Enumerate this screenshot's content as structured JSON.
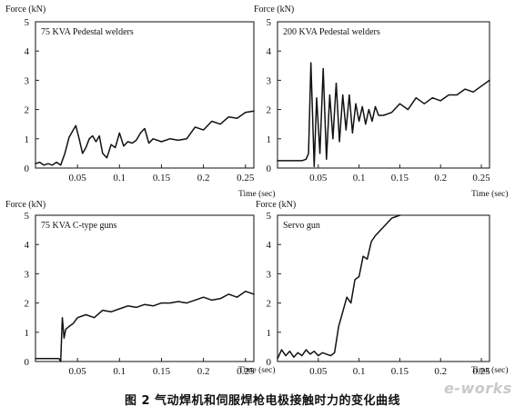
{
  "caption": "图 2   气动焊机和伺服焊枪电极接触时力的变化曲线",
  "watermark": "e-works",
  "colors": {
    "line": "#111111",
    "frame": "#222222",
    "background": "#ffffff"
  },
  "chart_data": [
    {
      "type": "line",
      "title": "75 KVA Pedestal welders",
      "ylabel": "Force (kN)",
      "xlabel": "Time (sec)",
      "xlim": [
        0,
        0.26
      ],
      "ylim": [
        0,
        5
      ],
      "xticks": [
        "0.05",
        "0.1",
        "0.15",
        "0.2",
        "0.25"
      ],
      "yticks": [
        "0",
        "1",
        "2",
        "3",
        "4",
        "5"
      ],
      "series": [
        {
          "x": [
            0,
            0.005,
            0.01,
            0.015,
            0.02,
            0.025,
            0.03,
            0.035,
            0.04,
            0.045,
            0.048,
            0.052,
            0.056,
            0.06,
            0.064,
            0.068,
            0.072,
            0.076,
            0.08,
            0.085,
            0.09,
            0.095,
            0.1,
            0.105,
            0.11,
            0.115,
            0.12,
            0.125,
            0.13,
            0.135,
            0.14,
            0.15,
            0.16,
            0.17,
            0.18,
            0.19,
            0.2,
            0.21,
            0.22,
            0.23,
            0.24,
            0.25,
            0.26
          ],
          "y": [
            0.15,
            0.2,
            0.1,
            0.15,
            0.1,
            0.2,
            0.1,
            0.5,
            1.05,
            1.3,
            1.45,
            1.0,
            0.5,
            0.7,
            1.0,
            1.1,
            0.9,
            1.1,
            0.5,
            0.35,
            0.8,
            0.7,
            1.2,
            0.75,
            0.9,
            0.85,
            0.95,
            1.2,
            1.35,
            0.85,
            1.0,
            0.9,
            1.0,
            0.95,
            1.0,
            1.4,
            1.3,
            1.6,
            1.5,
            1.75,
            1.7,
            1.9,
            1.95
          ]
        }
      ]
    },
    {
      "type": "line",
      "title": "200 KVA Pedestal welders",
      "ylabel": "Force (kN)",
      "xlabel": "Time (sec)",
      "xlim": [
        0,
        0.26
      ],
      "ylim": [
        0,
        5
      ],
      "xticks": [
        "0.05",
        "0.1",
        "0.15",
        "0.2",
        "0.25"
      ],
      "yticks": [
        "0",
        "1",
        "2",
        "3",
        "4",
        "5"
      ],
      "series": [
        {
          "x": [
            0,
            0.01,
            0.02,
            0.03,
            0.035,
            0.038,
            0.041,
            0.045,
            0.048,
            0.052,
            0.056,
            0.06,
            0.064,
            0.068,
            0.072,
            0.076,
            0.08,
            0.084,
            0.088,
            0.092,
            0.096,
            0.1,
            0.104,
            0.108,
            0.112,
            0.116,
            0.12,
            0.124,
            0.13,
            0.14,
            0.15,
            0.16,
            0.17,
            0.18,
            0.19,
            0.2,
            0.21,
            0.22,
            0.23,
            0.24,
            0.25,
            0.26
          ],
          "y": [
            0.25,
            0.25,
            0.25,
            0.25,
            0.3,
            0.5,
            3.6,
            0.05,
            2.4,
            0.5,
            3.4,
            0.3,
            2.5,
            1.0,
            2.9,
            0.9,
            2.5,
            1.3,
            2.5,
            1.2,
            2.2,
            1.6,
            2.1,
            1.5,
            2.0,
            1.6,
            2.1,
            1.8,
            1.8,
            1.9,
            2.2,
            2.0,
            2.4,
            2.2,
            2.4,
            2.3,
            2.5,
            2.5,
            2.7,
            2.6,
            2.8,
            3.0
          ]
        }
      ]
    },
    {
      "type": "line",
      "title": "75 KVA C-type guns",
      "ylabel": "Force (kN)",
      "xlabel": "Time (sec)",
      "xlim": [
        0,
        0.26
      ],
      "ylim": [
        0,
        5
      ],
      "xticks": [
        "0.05",
        "0.1",
        "0.15",
        "0.2",
        "0.25"
      ],
      "yticks": [
        "0",
        "1",
        "2",
        "3",
        "4",
        "5"
      ],
      "series": [
        {
          "x": [
            0,
            0.01,
            0.02,
            0.025,
            0.028,
            0.03,
            0.032,
            0.034,
            0.036,
            0.04,
            0.045,
            0.05,
            0.06,
            0.07,
            0.08,
            0.09,
            0.1,
            0.11,
            0.12,
            0.13,
            0.14,
            0.15,
            0.16,
            0.17,
            0.18,
            0.19,
            0.2,
            0.21,
            0.22,
            0.23,
            0.24,
            0.25,
            0.26
          ],
          "y": [
            0.1,
            0.1,
            0.1,
            0.1,
            0.1,
            0.0,
            1.5,
            0.8,
            1.1,
            1.2,
            1.3,
            1.5,
            1.6,
            1.5,
            1.75,
            1.7,
            1.8,
            1.9,
            1.85,
            1.95,
            1.9,
            2.0,
            2.0,
            2.05,
            2.0,
            2.1,
            2.2,
            2.1,
            2.15,
            2.3,
            2.2,
            2.4,
            2.3
          ]
        }
      ]
    },
    {
      "type": "line",
      "title": "Servo gun",
      "ylabel": "Force (kN)",
      "xlabel": "Time (sec)",
      "xlim": [
        0,
        0.26
      ],
      "ylim": [
        0,
        5
      ],
      "xticks": [
        "0.05",
        "0.1",
        "0.15",
        "0.2",
        "0.25"
      ],
      "yticks": [
        "0",
        "1",
        "2",
        "3",
        "4",
        "5"
      ],
      "series": [
        {
          "x": [
            0,
            0.005,
            0.01,
            0.015,
            0.02,
            0.025,
            0.03,
            0.035,
            0.04,
            0.045,
            0.05,
            0.055,
            0.06,
            0.065,
            0.07,
            0.075,
            0.08,
            0.085,
            0.09,
            0.095,
            0.1,
            0.105,
            0.11,
            0.115,
            0.12,
            0.13,
            0.14,
            0.15
          ],
          "y": [
            0.1,
            0.4,
            0.2,
            0.35,
            0.15,
            0.3,
            0.2,
            0.4,
            0.25,
            0.35,
            0.2,
            0.3,
            0.25,
            0.2,
            0.3,
            1.2,
            1.7,
            2.2,
            2.0,
            2.8,
            2.9,
            3.6,
            3.5,
            4.1,
            4.3,
            4.6,
            4.9,
            5.0
          ]
        }
      ]
    }
  ]
}
